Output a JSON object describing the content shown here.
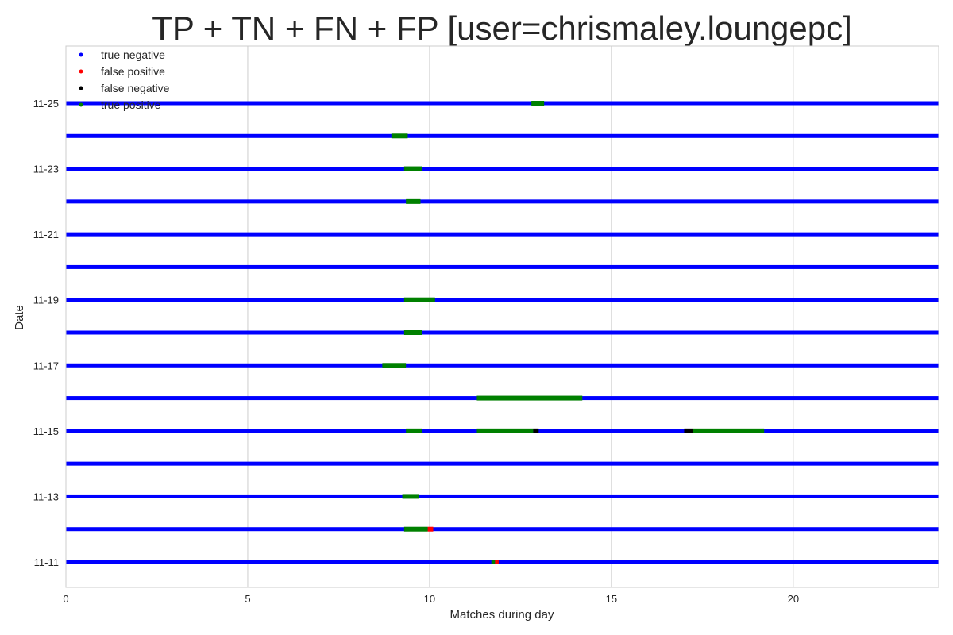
{
  "chart_data": {
    "type": "scatter",
    "title": "TP + TN + FN + FP [user=chrismaley.loungepc]",
    "xlabel": "Matches during day",
    "ylabel": "Date",
    "xlim": [
      0,
      24
    ],
    "x_ticks": [
      0,
      5,
      10,
      15,
      20
    ],
    "y_categories": [
      "11-11",
      "11-12",
      "11-13",
      "11-14",
      "11-15",
      "11-16",
      "11-17",
      "11-18",
      "11-19",
      "11-20",
      "11-21",
      "11-22",
      "11-23",
      "11-24",
      "11-25"
    ],
    "y_tick_labels": [
      "11-11",
      "11-13",
      "11-15",
      "11-17",
      "11-19",
      "11-21",
      "11-23",
      "11-25"
    ],
    "grid": true,
    "legend_position": "top-left",
    "colors": {
      "true_negative": "#0000ff",
      "false_positive": "#ff0000",
      "false_negative": "#000000",
      "true_positive": "#008000"
    },
    "series": [
      {
        "name": "true negative",
        "color": "#0000ff",
        "rows": [
          {
            "date": "11-11",
            "x_start": 0,
            "x_end": 24
          },
          {
            "date": "11-12",
            "x_start": 0,
            "x_end": 24
          },
          {
            "date": "11-13",
            "x_start": 0,
            "x_end": 24
          },
          {
            "date": "11-14",
            "x_start": 0,
            "x_end": 24
          },
          {
            "date": "11-15",
            "x_start": 0,
            "x_end": 24
          },
          {
            "date": "11-16",
            "x_start": 0,
            "x_end": 24
          },
          {
            "date": "11-17",
            "x_start": 0,
            "x_end": 24
          },
          {
            "date": "11-18",
            "x_start": 0,
            "x_end": 24
          },
          {
            "date": "11-19",
            "x_start": 0,
            "x_end": 24
          },
          {
            "date": "11-20",
            "x_start": 0,
            "x_end": 24
          },
          {
            "date": "11-21",
            "x_start": 0,
            "x_end": 24
          },
          {
            "date": "11-22",
            "x_start": 0,
            "x_end": 24
          },
          {
            "date": "11-23",
            "x_start": 0,
            "x_end": 24
          },
          {
            "date": "11-24",
            "x_start": 0,
            "x_end": 24
          },
          {
            "date": "11-25",
            "x_start": 0,
            "x_end": 24
          }
        ]
      },
      {
        "name": "false positive",
        "color": "#ff0000",
        "segments": [
          {
            "date": "11-12",
            "x_start": 9.95,
            "x_end": 10.1
          },
          {
            "date": "11-11",
            "x_start": 11.8,
            "x_end": 11.9
          }
        ]
      },
      {
        "name": "false negative",
        "color": "#000000",
        "segments": [
          {
            "date": "11-15",
            "x_start": 12.85,
            "x_end": 13.0
          },
          {
            "date": "11-15",
            "x_start": 17.0,
            "x_end": 17.25
          }
        ]
      },
      {
        "name": "true positive",
        "color": "#008000",
        "segments": [
          {
            "date": "11-25",
            "x_start": 12.8,
            "x_end": 13.15
          },
          {
            "date": "11-24",
            "x_start": 8.95,
            "x_end": 9.4
          },
          {
            "date": "11-23",
            "x_start": 9.3,
            "x_end": 9.8
          },
          {
            "date": "11-22",
            "x_start": 9.35,
            "x_end": 9.75
          },
          {
            "date": "11-19",
            "x_start": 9.3,
            "x_end": 10.15
          },
          {
            "date": "11-18",
            "x_start": 9.3,
            "x_end": 9.8
          },
          {
            "date": "11-17",
            "x_start": 8.7,
            "x_end": 9.35
          },
          {
            "date": "11-16",
            "x_start": 11.3,
            "x_end": 14.2
          },
          {
            "date": "11-15",
            "x_start": 9.35,
            "x_end": 9.8
          },
          {
            "date": "11-15",
            "x_start": 11.3,
            "x_end": 12.85
          },
          {
            "date": "11-15",
            "x_start": 17.25,
            "x_end": 19.2
          },
          {
            "date": "11-13",
            "x_start": 9.25,
            "x_end": 9.7
          },
          {
            "date": "11-12",
            "x_start": 9.3,
            "x_end": 9.95
          },
          {
            "date": "11-11",
            "x_start": 11.7,
            "x_end": 11.8
          }
        ]
      }
    ],
    "legend": [
      {
        "label": "true negative",
        "color": "#0000ff"
      },
      {
        "label": "false positive",
        "color": "#ff0000"
      },
      {
        "label": "false negative",
        "color": "#000000"
      },
      {
        "label": "true positive",
        "color": "#008000"
      }
    ]
  }
}
